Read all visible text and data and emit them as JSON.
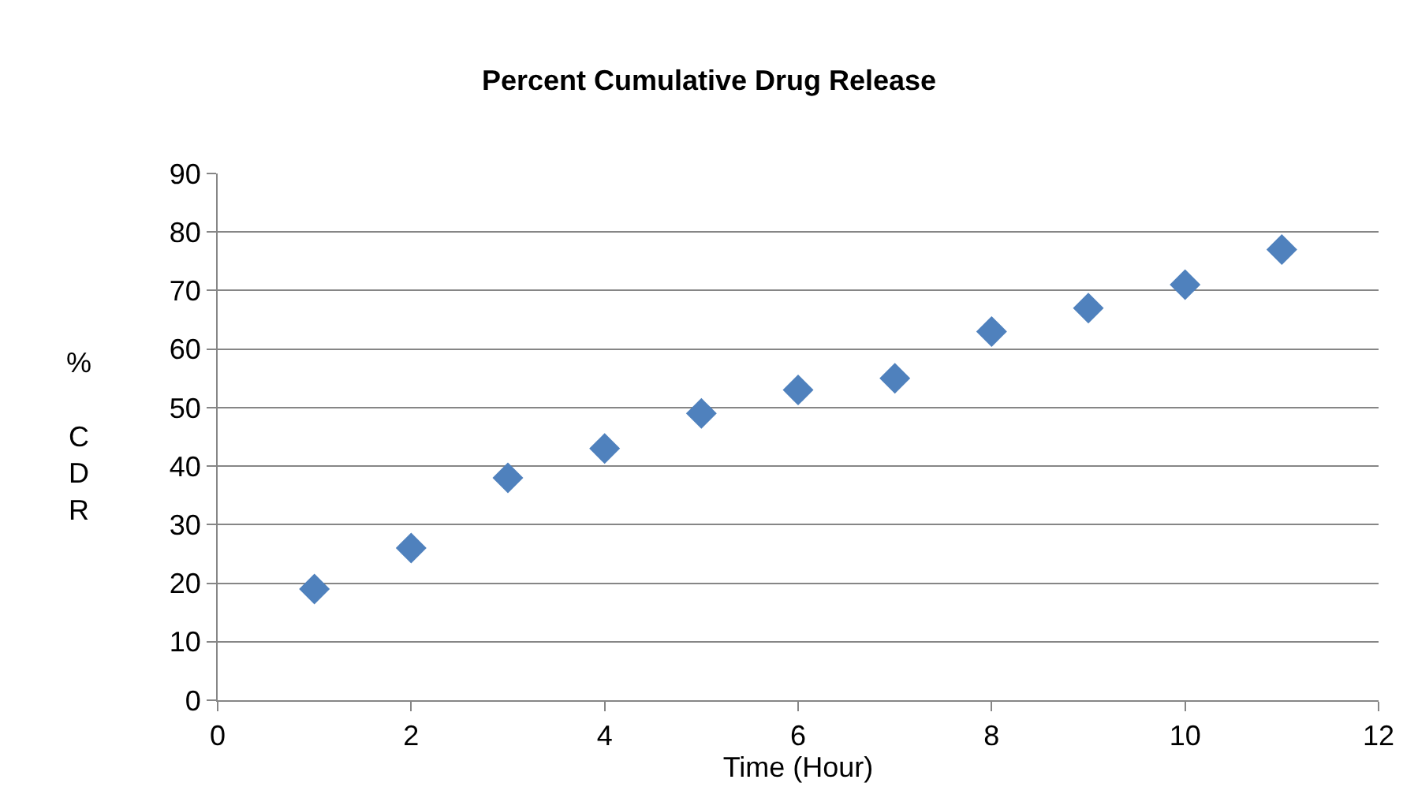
{
  "chart_data": {
    "type": "scatter",
    "title": "Percent Cumulative Drug Release",
    "xlabel": "Time (Hour)",
    "ylabel": "% CDR",
    "x": [
      1,
      2,
      3,
      4,
      5,
      6,
      7,
      8,
      9,
      10,
      11
    ],
    "series": [
      {
        "color": "#4f81bd",
        "values": [
          19,
          26,
          38,
          43,
          49,
          53,
          55,
          63,
          67,
          71,
          77
        ]
      }
    ],
    "xlim": [
      0,
      12
    ],
    "xticks": [
      0,
      2,
      4,
      6,
      8,
      10,
      12
    ],
    "ylim": [
      0,
      90
    ],
    "yticks": [
      0,
      10,
      20,
      30,
      40,
      50,
      60,
      70,
      80,
      90
    ],
    "grid": "y",
    "marker": "diamond"
  }
}
